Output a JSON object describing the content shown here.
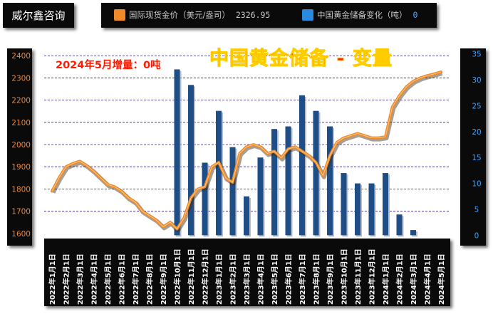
{
  "brand": "威尔鑫咨询",
  "legend": {
    "gold_label": "国际现货金价（美元/盎司）",
    "gold_value": "2326.95",
    "gold_color": "#f08a28",
    "reserve_label": "中国黄金储备变化（吨）",
    "reserve_value": "0",
    "reserve_color": "#2a8ae0"
  },
  "chart_data": {
    "type": "bar+line",
    "title": "中国黄金储备 - 变量",
    "annotation": "2024年5月增量：0吨",
    "categories": [
      "2022年1月1日",
      "2022年2月1日",
      "2022年3月1日",
      "2022年4月1日",
      "2022年5月1日",
      "2022年6月1日",
      "2022年7月1日",
      "2022年8月1日",
      "2022年9月1日",
      "2022年10月1日",
      "2022年11月1日",
      "2022年12月1日",
      "2023年1月1日",
      "2023年2月1日",
      "2023年3月1日",
      "2023年4月1日",
      "2023年5月1日",
      "2023年6月1日",
      "2023年7月1日",
      "2023年8月1日",
      "2023年9月1日",
      "2023年10月1日",
      "2023年11月1日",
      "2023年12月1日",
      "2024年1月1日",
      "2024年2月1日",
      "2024年3月1日",
      "2024年4月1日",
      "2024年5月1日"
    ],
    "x_step_months": 0.5,
    "series": [
      {
        "name": "国际现货金价（美元/盎司）",
        "type": "line",
        "axis": "left",
        "color": "#f08a28",
        "x": [
          0,
          1,
          2,
          3,
          4,
          5,
          6,
          7,
          8,
          9,
          10,
          11,
          12,
          13,
          14,
          15,
          16,
          17,
          18,
          19,
          20,
          21,
          22,
          23,
          24,
          25,
          26,
          27,
          28,
          29,
          30,
          31,
          32,
          33,
          34,
          35,
          36,
          37,
          38,
          39,
          40,
          41,
          42,
          43,
          44,
          45,
          46,
          47,
          48,
          49,
          50,
          51,
          52,
          53,
          54,
          55,
          56
        ],
        "values": [
          1790,
          1850,
          1900,
          1915,
          1925,
          1905,
          1880,
          1850,
          1820,
          1810,
          1790,
          1760,
          1740,
          1700,
          1680,
          1660,
          1630,
          1650,
          1620,
          1670,
          1760,
          1800,
          1810,
          1900,
          1920,
          1850,
          1830,
          1960,
          1990,
          2000,
          1990,
          1960,
          1970,
          1940,
          1980,
          1990,
          1970,
          1950,
          1920,
          1860,
          1950,
          2010,
          2030,
          2040,
          2050,
          2040,
          2030,
          2030,
          2035,
          2170,
          2220,
          2260,
          2285,
          2300,
          2310,
          2318,
          2327
        ]
      },
      {
        "name": "中国黄金储备变化（吨）",
        "type": "bar",
        "axis": "right",
        "color": "#1f4e87",
        "values": [
          null,
          null,
          null,
          null,
          null,
          null,
          null,
          null,
          null,
          32,
          29,
          14,
          24,
          17,
          7.5,
          15,
          20.5,
          21,
          27,
          24,
          21,
          12,
          10,
          10,
          12,
          4,
          1,
          null,
          null
        ]
      }
    ],
    "y_left": {
      "ticks": [
        1600,
        1700,
        1800,
        1900,
        2000,
        2100,
        2200,
        2300,
        2400
      ],
      "range": [
        1580,
        2420
      ]
    },
    "y_right": {
      "ticks": [
        0,
        5,
        10,
        15,
        20,
        25,
        30,
        35
      ],
      "range": [
        -0.5,
        35.5
      ]
    },
    "grid": true
  }
}
